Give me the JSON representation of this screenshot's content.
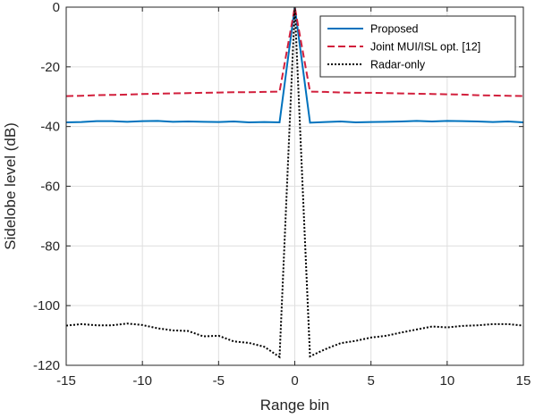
{
  "chart_data": {
    "type": "line",
    "title": "",
    "xlabel": "Range bin",
    "ylabel": "Sidelobe level (dB)",
    "xlim": [
      -15,
      15
    ],
    "ylim": [
      -120,
      0
    ],
    "xticks": [
      -15,
      -10,
      -5,
      0,
      5,
      10,
      15
    ],
    "yticks": [
      0,
      -20,
      -40,
      -60,
      -80,
      -100,
      -120
    ],
    "grid": true,
    "legend_position": "top-right",
    "series": [
      {
        "name": "Proposed",
        "color": "#0072BD",
        "style": "solid",
        "x": [
          -15,
          -14,
          -13,
          -12,
          -11,
          -10,
          -9,
          -8,
          -7,
          -6,
          -5,
          -4,
          -3,
          -2,
          -1,
          0,
          1,
          2,
          3,
          4,
          5,
          6,
          7,
          8,
          9,
          10,
          11,
          12,
          13,
          14,
          15
        ],
        "y": [
          -38.6,
          -38.5,
          -38.2,
          -38.2,
          -38.4,
          -38.2,
          -38.1,
          -38.4,
          -38.3,
          -38.4,
          -38.5,
          -38.3,
          -38.6,
          -38.5,
          -38.6,
          0,
          -38.7,
          -38.5,
          -38.3,
          -38.6,
          -38.5,
          -38.4,
          -38.3,
          -38.1,
          -38.3,
          -38.1,
          -38.2,
          -38.3,
          -38.5,
          -38.3,
          -38.6
        ]
      },
      {
        "name": "Joint MUI/ISL opt. [12]",
        "color": "#D21F3C",
        "style": "dashed",
        "x": [
          -15,
          -14,
          -13,
          -12,
          -11,
          -10,
          -9,
          -8,
          -7,
          -6,
          -5,
          -4,
          -3,
          -2,
          -1,
          0,
          1,
          2,
          3,
          4,
          5,
          6,
          7,
          8,
          9,
          10,
          11,
          12,
          13,
          14,
          15
        ],
        "y": [
          -29.8,
          -29.7,
          -29.5,
          -29.4,
          -29.3,
          -29.1,
          -29.0,
          -28.9,
          -28.8,
          -28.7,
          -28.6,
          -28.5,
          -28.5,
          -28.4,
          -28.3,
          0,
          -28.3,
          -28.4,
          -28.6,
          -28.7,
          -28.7,
          -28.8,
          -28.9,
          -29.0,
          -29.1,
          -29.2,
          -29.3,
          -29.5,
          -29.6,
          -29.7,
          -29.8
        ]
      },
      {
        "name": "Radar-only",
        "color": "#000000",
        "style": "dotted",
        "x": [
          -15,
          -14,
          -13,
          -12,
          -11,
          -10,
          -9,
          -8,
          -7,
          -6,
          -5,
          -4,
          -3,
          -2,
          -1,
          0,
          1,
          2,
          3,
          4,
          5,
          6,
          7,
          8,
          9,
          10,
          11,
          12,
          13,
          14,
          15
        ],
        "y": [
          -106.7,
          -106.2,
          -106.6,
          -106.6,
          -106.0,
          -106.5,
          -107.6,
          -108.3,
          -108.5,
          -110.3,
          -110.1,
          -112.0,
          -112.5,
          -113.8,
          -117.2,
          0,
          -117.0,
          -114.6,
          -112.6,
          -111.8,
          -110.7,
          -110.1,
          -109.0,
          -108.0,
          -107.0,
          -107.3,
          -106.8,
          -106.6,
          -106.2,
          -106.2,
          -106.7
        ]
      }
    ]
  }
}
